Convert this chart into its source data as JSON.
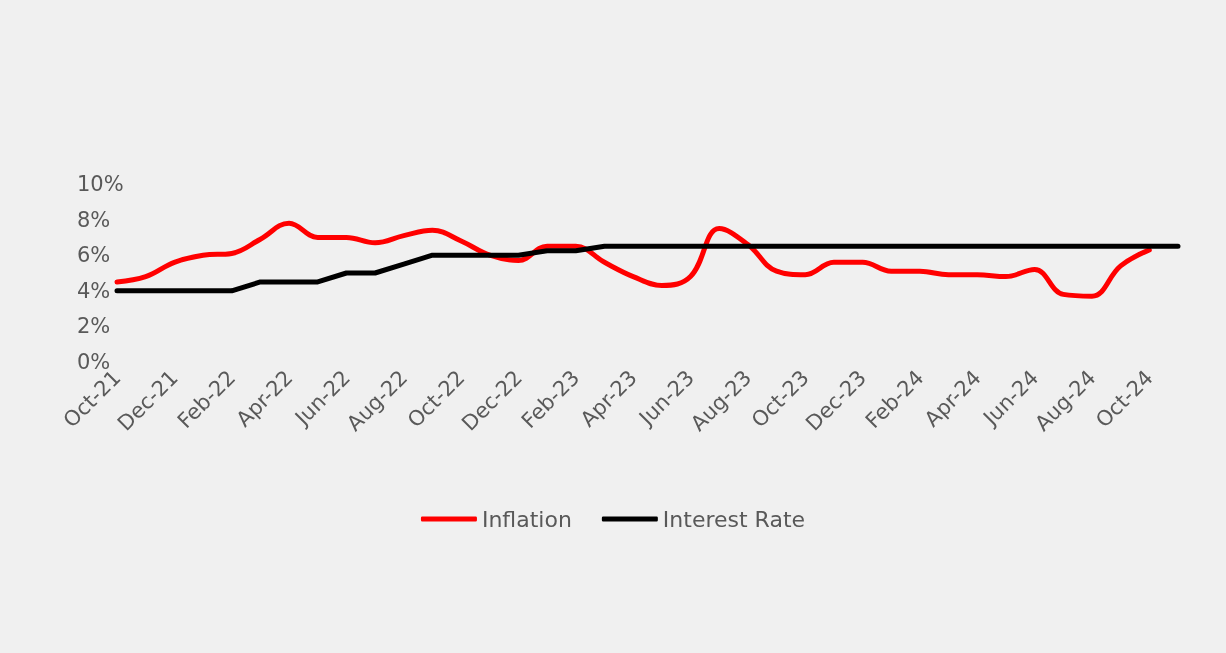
{
  "chart_data": {
    "type": "line",
    "categories": [
      "Oct-21",
      null,
      "Dec-21",
      null,
      "Feb-22",
      null,
      "Apr-22",
      null,
      "Jun-22",
      null,
      "Aug-22",
      null,
      "Oct-22",
      null,
      "Dec-22",
      null,
      "Feb-23",
      null,
      "Apr-23",
      null,
      "Jun-23",
      null,
      "Aug-23",
      null,
      "Oct-23",
      null,
      "Dec-23",
      null,
      "Feb-24",
      null,
      "Apr-24",
      null,
      "Jun-24",
      null,
      "Aug-24",
      null,
      "Oct-24",
      null
    ],
    "series": [
      {
        "name": "Inflation",
        "color": "#ff0000",
        "values": [
          4.5,
          4.8,
          5.6,
          6.0,
          6.1,
          6.9,
          7.8,
          7.0,
          7.0,
          6.7,
          7.1,
          7.4,
          6.8,
          6.0,
          5.7,
          6.5,
          6.5,
          5.6,
          4.8,
          4.3,
          4.8,
          7.5,
          6.6,
          5.1,
          4.9,
          5.6,
          5.6,
          5.1,
          5.1,
          4.9,
          4.9,
          4.8,
          5.2,
          3.8,
          3.7,
          5.4,
          6.3,
          null
        ]
      },
      {
        "name": "Interest Rate",
        "color": "#000000",
        "values": [
          4.0,
          4.0,
          4.0,
          4.0,
          4.0,
          4.5,
          4.5,
          4.5,
          5.0,
          5.0,
          5.5,
          6.0,
          6.0,
          6.0,
          6.0,
          6.25,
          6.25,
          6.5,
          6.5,
          6.5,
          6.5,
          6.5,
          6.5,
          6.5,
          6.5,
          6.5,
          6.5,
          6.5,
          6.5,
          6.5,
          6.5,
          6.5,
          6.5,
          6.5,
          6.5,
          6.5,
          6.5,
          6.5
        ]
      }
    ],
    "ylim": [
      0,
      10
    ],
    "yticks": [
      {
        "value": 0,
        "label": "0%"
      },
      {
        "value": 2,
        "label": "2%"
      },
      {
        "value": 4,
        "label": "4%"
      },
      {
        "value": 6,
        "label": "6%"
      },
      {
        "value": 8,
        "label": "8%"
      },
      {
        "value": 10,
        "label": "10%"
      }
    ],
    "grid": false,
    "legend": "bottom",
    "marker": "none",
    "line_style": "solid"
  }
}
